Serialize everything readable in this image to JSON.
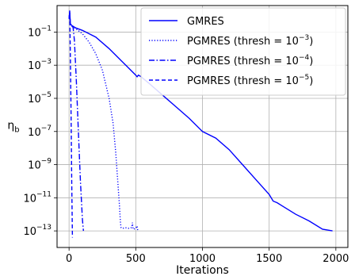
{
  "chart_data": {
    "type": "line",
    "xlabel": "Iterations",
    "ylabel": "η",
    "ylabel_sub": "b",
    "y_scale": "log",
    "xlim": [
      -90,
      2090
    ],
    "ylim_exp": [
      -14,
      0.6
    ],
    "x_ticks": [
      0,
      500,
      1000,
      1500,
      2000
    ],
    "x_tick_labels": [
      "0",
      "500",
      "1000",
      "1500",
      "2000"
    ],
    "y_tick_exps": [
      -13,
      -11,
      -9,
      -7,
      -5,
      -3,
      -1
    ],
    "y_tick_labels": [
      {
        "base": "10",
        "exp": "−13"
      },
      {
        "base": "10",
        "exp": "−11"
      },
      {
        "base": "10",
        "exp": "−9"
      },
      {
        "base": "10",
        "exp": "−7"
      },
      {
        "base": "10",
        "exp": "−5"
      },
      {
        "base": "10",
        "exp": "−3"
      },
      {
        "base": "10",
        "exp": "−1"
      }
    ],
    "grid": true,
    "legend_position": "top-right",
    "series": [
      {
        "name": "GMRES",
        "name_base": "",
        "name_exp": "",
        "name_suffix": "",
        "style": "solid",
        "color": "#0000ff",
        "points": [
          [
            0,
            -0.2
          ],
          [
            5,
            0.2
          ],
          [
            10,
            -0.5
          ],
          [
            20,
            -0.6
          ],
          [
            50,
            -0.75
          ],
          [
            100,
            -0.9
          ],
          [
            200,
            -1.3
          ],
          [
            300,
            -2.0
          ],
          [
            400,
            -2.8
          ],
          [
            500,
            -3.6
          ],
          [
            510,
            -3.7
          ],
          [
            520,
            -3.6
          ],
          [
            540,
            -3.7
          ],
          [
            600,
            -4.1
          ],
          [
            700,
            -4.8
          ],
          [
            800,
            -5.5
          ],
          [
            900,
            -6.2
          ],
          [
            1000,
            -7.0
          ],
          [
            1100,
            -7.4
          ],
          [
            1200,
            -8.1
          ],
          [
            1300,
            -9.0
          ],
          [
            1400,
            -9.9
          ],
          [
            1500,
            -10.8
          ],
          [
            1530,
            -11.2
          ],
          [
            1560,
            -11.3
          ],
          [
            1600,
            -11.5
          ],
          [
            1700,
            -12.0
          ],
          [
            1800,
            -12.4
          ],
          [
            1900,
            -12.9
          ],
          [
            1975,
            -13.0
          ]
        ]
      },
      {
        "name": "PGMRES (thresh = ",
        "name_base": "10",
        "name_exp": "−3",
        "name_suffix": ")",
        "style": "dotted",
        "color": "#0000ff",
        "points": [
          [
            0,
            -0.2
          ],
          [
            5,
            0.2
          ],
          [
            10,
            -0.6
          ],
          [
            50,
            -0.8
          ],
          [
            100,
            -1.1
          ],
          [
            150,
            -1.6
          ],
          [
            200,
            -2.3
          ],
          [
            250,
            -3.3
          ],
          [
            300,
            -5.0
          ],
          [
            330,
            -6.5
          ],
          [
            350,
            -8.3
          ],
          [
            365,
            -10.0
          ],
          [
            378,
            -11.5
          ],
          [
            385,
            -12.5
          ],
          [
            390,
            -12.8
          ],
          [
            400,
            -12.85
          ],
          [
            420,
            -12.8
          ],
          [
            450,
            -12.85
          ],
          [
            470,
            -12.8
          ],
          [
            475,
            -12.5
          ],
          [
            480,
            -12.9
          ],
          [
            500,
            -12.85
          ],
          [
            510,
            -12.7
          ],
          [
            515,
            -13.0
          ]
        ]
      },
      {
        "name": "PGMRES (thresh = ",
        "name_base": "10",
        "name_exp": "−4",
        "name_suffix": ")",
        "style": "dashdot",
        "color": "#0000ff",
        "points": [
          [
            0,
            -0.2
          ],
          [
            5,
            0.2
          ],
          [
            10,
            -0.6
          ],
          [
            30,
            -0.7
          ],
          [
            40,
            -1.5
          ],
          [
            55,
            -4.0
          ],
          [
            70,
            -7.0
          ],
          [
            85,
            -10.0
          ],
          [
            100,
            -12.3
          ],
          [
            108,
            -13.0
          ]
        ]
      },
      {
        "name": "PGMRES (thresh = ",
        "name_base": "10",
        "name_exp": "−5",
        "name_suffix": ")",
        "style": "dashed",
        "color": "#0000ff",
        "points": [
          [
            0,
            -0.2
          ],
          [
            5,
            0.3
          ],
          [
            10,
            -2.5
          ],
          [
            15,
            -6.0
          ],
          [
            20,
            -10.0
          ],
          [
            25,
            -13.4
          ]
        ]
      }
    ]
  }
}
